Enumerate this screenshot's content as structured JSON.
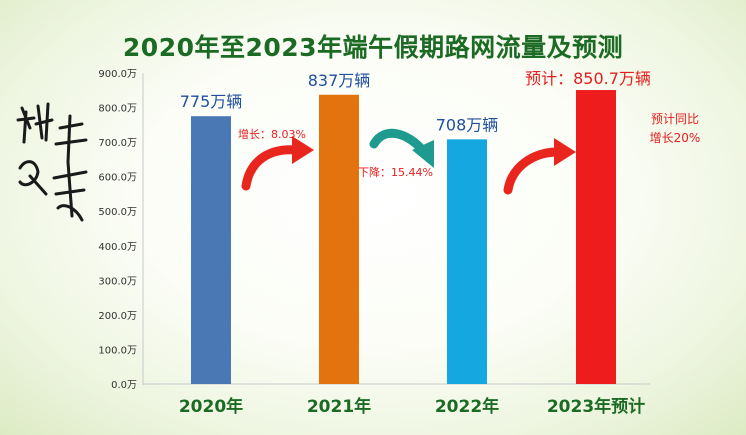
{
  "title": "2020年至2023年端午假期路网流量及预测",
  "decor_text": "端午安康",
  "colors": {
    "title": "#1c6b25",
    "bar2020": "#4a78b5",
    "bar2021": "#e2730f",
    "bar2022": "#14a7e0",
    "bar2023": "#ee1c1c",
    "increase_note": "#e31e1e",
    "decrease_note": "#e31e1e",
    "arrow_up": "#e8261e",
    "arrow_down": "#1e9a8f"
  },
  "chart_data": {
    "type": "bar",
    "title": "2020年至2023年端午假期路网流量及预测",
    "xlabel": "",
    "ylabel": "",
    "categories": [
      "2020年",
      "2021年",
      "2022年",
      "2023年预计"
    ],
    "values": [
      775,
      837,
      708,
      850.7
    ],
    "units": "万辆",
    "ylim": [
      0,
      900
    ],
    "yticks": [
      "0.0万",
      "100.0万",
      "200.0万",
      "300.0万",
      "400.0万",
      "500.0万",
      "600.0万",
      "700.0万",
      "800.0万",
      "900.0万"
    ],
    "data_labels": [
      "775万辆",
      "837万辆",
      "708万辆",
      "预计：850.7万辆"
    ],
    "annotations": {
      "growth_2021": "增长：8.03%",
      "decline_2022": "下降：15.44%",
      "forecast_line1": "预计同比",
      "forecast_line2": "增长20%"
    },
    "grid": false,
    "legend": "none"
  }
}
